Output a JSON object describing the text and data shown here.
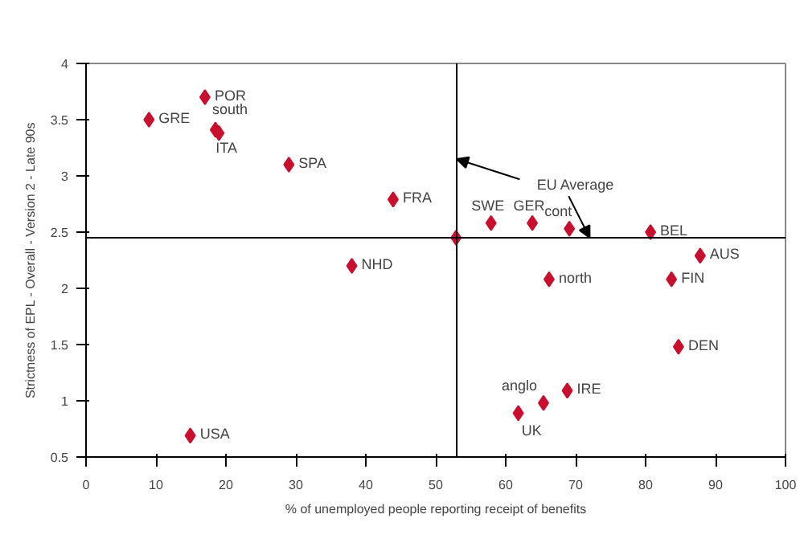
{
  "chart_data": {
    "type": "scatter",
    "xlabel": "% of unemployed people reporting receipt of benefits",
    "ylabel": "Strictness of EPL - Overall - Version 2 - Late 90s",
    "xlim": [
      0,
      100
    ],
    "xticks": [
      0,
      10,
      20,
      30,
      40,
      50,
      60,
      70,
      80,
      90,
      100
    ],
    "ylim": [
      0.5,
      4
    ],
    "yticks": [
      0.5,
      1,
      1.5,
      2,
      2.5,
      3,
      3.5,
      4
    ],
    "grid": false,
    "marker": "diamond",
    "series": [
      {
        "color": "#c8102e",
        "x": [
          17.0,
          9.0,
          18.5,
          19.0,
          29.0,
          43.9,
          38.0,
          52.9,
          57.9,
          63.8,
          69.1,
          80.7,
          87.8,
          66.2,
          83.7,
          84.7,
          68.8,
          65.4,
          61.8,
          14.9
        ],
        "values": [
          3.7,
          3.5,
          3.41,
          3.38,
          3.1,
          2.79,
          2.2,
          2.45,
          2.58,
          2.58,
          2.53,
          2.5,
          2.29,
          2.08,
          2.08,
          1.48,
          1.09,
          0.98,
          0.89,
          0.69
        ]
      }
    ],
    "ref_lines": [
      {
        "axis": "x",
        "value": 53,
        "color": "#000000"
      },
      {
        "axis": "y",
        "value": 2.45,
        "color": "#000000"
      }
    ],
    "annotations": [
      {
        "text": "POR",
        "x": 17.0,
        "y": 3.7
      },
      {
        "text": "GRE",
        "x": 9.0,
        "y": 3.5
      },
      {
        "text": "south",
        "x": 18.5,
        "y": 3.41
      },
      {
        "text": "ITA",
        "x": 19.0,
        "y": 3.38
      },
      {
        "text": "SPA",
        "x": 29.0,
        "y": 3.1
      },
      {
        "text": "FRA",
        "x": 43.9,
        "y": 2.79
      },
      {
        "text": "NHD",
        "x": 38.0,
        "y": 2.2
      },
      {
        "text": "SWE",
        "x": 57.9,
        "y": 2.58
      },
      {
        "text": "GER",
        "x": 63.8,
        "y": 2.58
      },
      {
        "text": "cont",
        "x": 69.1,
        "y": 2.53
      },
      {
        "text": "BEL",
        "x": 80.7,
        "y": 2.5
      },
      {
        "text": "AUS",
        "x": 87.8,
        "y": 2.29
      },
      {
        "text": "north",
        "x": 66.2,
        "y": 2.08
      },
      {
        "text": "FIN",
        "x": 83.7,
        "y": 2.08
      },
      {
        "text": "DEN",
        "x": 84.7,
        "y": 1.48
      },
      {
        "text": "IRE",
        "x": 68.8,
        "y": 1.09
      },
      {
        "text": "anglo",
        "x": 65.4,
        "y": 0.98
      },
      {
        "text": "UK",
        "x": 61.8,
        "y": 0.89
      },
      {
        "text": "USA",
        "x": 14.9,
        "y": 0.69
      },
      {
        "text": "EU Average",
        "x": 53,
        "y": 3.15
      }
    ]
  }
}
